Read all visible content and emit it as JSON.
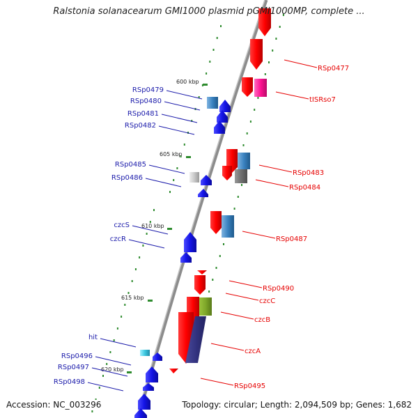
{
  "header": {
    "title": "Ralstonia solanacearum GMI1000 plasmid pGMI1000MP, complete ..."
  },
  "footer": {
    "accession": "Accession: NC_003296",
    "summary": "Topology: circular; Length: 2,094,509 bp; Genes: 1,682"
  },
  "ticks": [
    "600 kbp",
    "605 kbp",
    "610 kbp",
    "615 kbp",
    "620 kbp"
  ],
  "genes": {
    "forward_strand": [
      "RSp0477",
      "tISRso7",
      "RSp0483",
      "RSp0484",
      "RSp0487",
      "RSp0490",
      "czcC",
      "czcB",
      "czcA",
      "RSp0495"
    ],
    "reverse_strand": [
      "RSp0479",
      "RSp0480",
      "RSp0481",
      "RSp0482",
      "RSp0485",
      "RSp0486",
      "czcS",
      "czcR",
      "hit",
      "RSp0496",
      "RSp0497",
      "RSp0498"
    ]
  },
  "colors": {
    "forward_cds": "#ff0000",
    "reverse_cds": "#1414e6",
    "mobile_element": "#ff1493",
    "backbone": "#8c8c8c",
    "gc_skew_dot": "#2e8b2e",
    "label_forward": "#e60000",
    "label_reverse": "#1a1aaa"
  }
}
